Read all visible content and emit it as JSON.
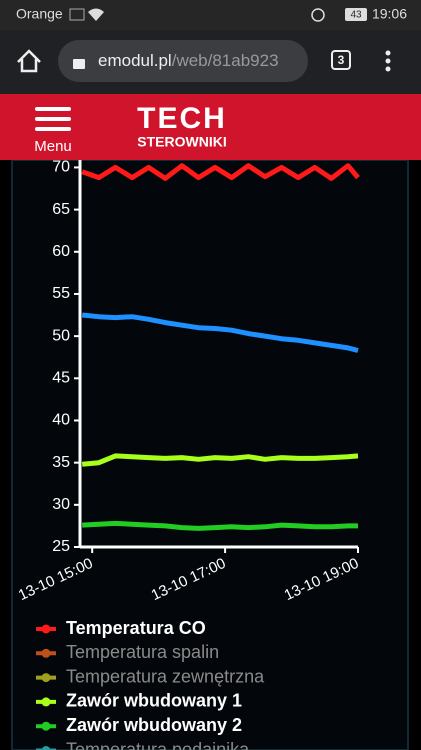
{
  "status_bar": {
    "carrier": "Orange",
    "battery": "43",
    "time": "19:06"
  },
  "browser": {
    "url_host": "emodul.pl",
    "url_path": "/web/81ab923",
    "tabs": "3"
  },
  "header": {
    "menu": "Menu",
    "logo": "TECH",
    "logo_sub": "STEROWNIKI"
  },
  "chart_data": {
    "type": "line",
    "x": [
      "13-10 14:51",
      "13-10 15:06",
      "13-10 15:21",
      "13-10 15:36",
      "13-10 15:51",
      "13-10 16:06",
      "13-10 16:21",
      "13-10 16:36",
      "13-10 16:51",
      "13-10 17:06",
      "13-10 17:21",
      "13-10 17:36",
      "13-10 17:51",
      "13-10 18:06",
      "13-10 18:21",
      "13-10 18:36",
      "13-10 18:51",
      "13-10 19:00"
    ],
    "xlim": [
      "13-10 14:49",
      "13-10 19:00"
    ],
    "xticks": [
      "13-10 15:00",
      "13-10 17:00",
      "13-10 19:00"
    ],
    "ylim": [
      25,
      71
    ],
    "yticks": [
      25,
      30,
      35,
      40,
      45,
      50,
      55,
      60,
      65,
      70
    ],
    "series": [
      {
        "name": "Temperatura CO",
        "color": "#ff1a1a",
        "values": [
          69.5,
          68.8,
          70,
          68.8,
          70,
          68.7,
          70.2,
          68.8,
          70,
          68.8,
          70.2,
          68.9,
          70,
          68.8,
          70,
          68.7,
          70.2,
          68.8
        ]
      },
      {
        "color": "#1e90ff",
        "values": [
          52.5,
          52.3,
          52.2,
          52.3,
          52,
          51.6,
          51.3,
          51,
          50.9,
          50.7,
          50.3,
          50,
          49.7,
          49.5,
          49.2,
          48.9,
          48.6,
          48.3
        ]
      },
      {
        "name": "Zawór wbudowany 1",
        "color": "#a8ff1a",
        "values": [
          34.8,
          35,
          35.8,
          35.7,
          35.6,
          35.5,
          35.6,
          35.4,
          35.6,
          35.5,
          35.7,
          35.4,
          35.6,
          35.5,
          35.5,
          35.6,
          35.7,
          35.8
        ]
      },
      {
        "name": "Zawór wbudowany 2",
        "color": "#22cc22",
        "values": [
          27.6,
          27.7,
          27.8,
          27.7,
          27.6,
          27.5,
          27.3,
          27.2,
          27.3,
          27.4,
          27.3,
          27.4,
          27.6,
          27.5,
          27.4,
          27.4,
          27.5,
          27.5
        ]
      }
    ],
    "legend": [
      {
        "name": "Temperatura CO",
        "color": "#ff1a1a",
        "active": true
      },
      {
        "name": "Temperatura spalin",
        "color": "#c0501a",
        "active": false
      },
      {
        "name": "Temperatura zewnętrzna",
        "color": "#a0a020",
        "active": false
      },
      {
        "name": "Zawór wbudowany 1",
        "color": "#a8ff1a",
        "active": true
      },
      {
        "name": "Zawór wbudowany 2",
        "color": "#22cc22",
        "active": true
      },
      {
        "name": "Temperatura podajnika",
        "color": "#20a0a0",
        "active": false
      }
    ]
  }
}
